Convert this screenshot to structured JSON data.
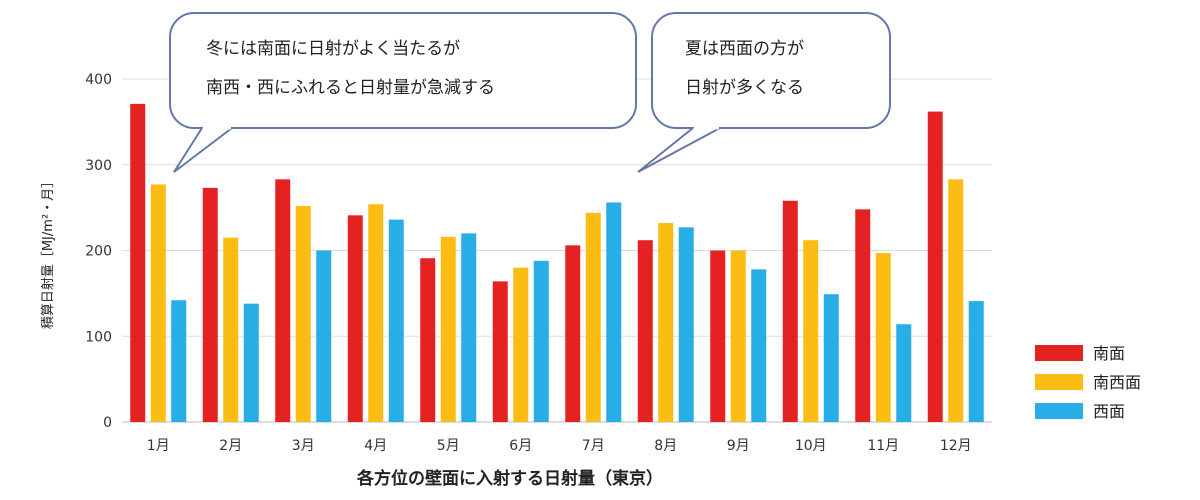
{
  "chart_data": {
    "type": "bar",
    "title": "各方位の壁面に入射する日射量（東京）",
    "ylabel": "積算日射量［MJ/m²・月］",
    "xlabel": "",
    "ylim": [
      0,
      400
    ],
    "yticks": [
      "0",
      "100",
      "200",
      "300",
      "400"
    ],
    "grid": true,
    "legend_position": "right",
    "categories": [
      "1月",
      "2月",
      "3月",
      "4月",
      "5月",
      "6月",
      "7月",
      "8月",
      "9月",
      "10月",
      "11月",
      "12月"
    ],
    "series": [
      {
        "name": "南面",
        "color": "#e52222",
        "values": [
          371,
          273,
          283,
          241,
          191,
          164,
          206,
          212,
          200,
          258,
          248,
          362
        ]
      },
      {
        "name": "南西面",
        "color": "#fbbd13",
        "values": [
          277,
          215,
          252,
          254,
          216,
          180,
          244,
          232,
          200,
          212,
          197,
          283
        ]
      },
      {
        "name": "西面",
        "color": "#27aee6",
        "values": [
          142,
          138,
          200,
          236,
          220,
          188,
          256,
          227,
          178,
          149,
          114,
          141
        ]
      }
    ],
    "annotations": [
      {
        "lines": [
          "冬には南面に日射がよく当たるが",
          "南西・西にふれると日射量が急減する"
        ]
      },
      {
        "lines": [
          "夏は西面の方が",
          "日射が多くなる"
        ]
      }
    ]
  }
}
